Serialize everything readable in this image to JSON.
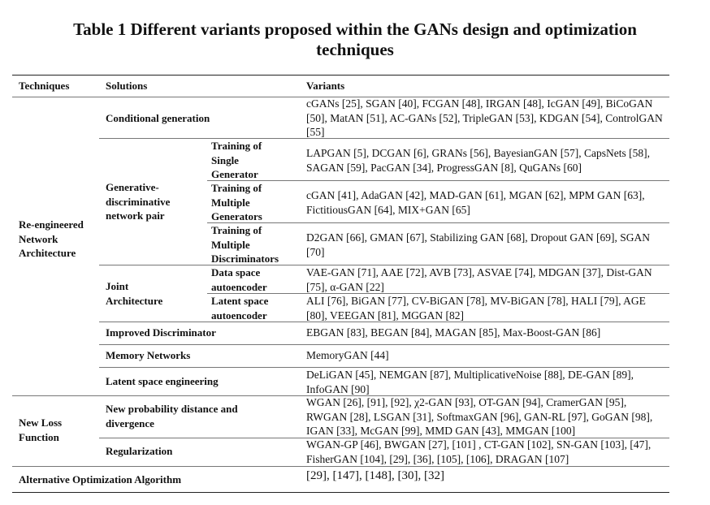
{
  "title": "Table 1 Different variants proposed within the GANs design and optimization techniques",
  "headers": {
    "techniques": "Techniques",
    "solutions": "Solutions",
    "variants": "Variants"
  },
  "techniques": {
    "reengineered": "Re-engineered Network Architecture",
    "new_loss": "New Loss Function",
    "alt_opt": "Alternative Optimization Algorithm"
  },
  "solutions": {
    "conditional": "Conditional generation",
    "gen_disc": "Generative-discriminative network pair",
    "joint": "Joint Architecture",
    "improved_disc": "Improved Discriminator",
    "memory": "Memory Networks",
    "latent_eng": "Latent space engineering",
    "new_prob": "New probability distance and divergence",
    "regularization": "Regularization"
  },
  "subsolutions": {
    "single_gen": "Training of Single Generator",
    "multi_gen": "Training of Multiple Generators",
    "multi_disc": "Training of Multiple Discriminators",
    "data_ae": "Data space autoencoder",
    "latent_ae": "Latent space autoencoder"
  },
  "variants": {
    "conditional": "cGANs [25], SGAN [40], FCGAN [48], IRGAN [48], IcGAN [49], BiCoGAN [50], MatAN [51], AC-GANs [52], TripleGAN [53], KDGAN [54], ControlGAN [55]",
    "single_gen": "LAPGAN [5], DCGAN [6], GRANs [56], BayesianGAN [57], CapsNets [58], SAGAN [59], PacGAN [34], ProgressGAN [8], QuGANs [60]",
    "multi_gen": "cGAN [41], AdaGAN [42], MAD-GAN [61], MGAN [62], MPM GAN [63], FictitiousGAN [64], MIX+GAN [65]",
    "multi_disc": "D2GAN [66], GMAN [67], Stabilizing GAN [68], Dropout GAN [69], SGAN [70]",
    "data_ae": "VAE-GAN [71], AAE [72], AVB [73], ASVAE [74], MDGAN [37], Dist-GAN [75], α-GAN [22]",
    "latent_ae": "ALI [76], BiGAN [77], CV-BiGAN [78], MV-BiGAN [78], HALI [79], AGE [80], VEEGAN [81], MGGAN [82]",
    "improved_disc": "EBGAN [83], BEGAN [84], MAGAN [85], Max-Boost-GAN [86]",
    "memory": "MemoryGAN [44]",
    "latent_eng": "DeLiGAN [45], NEMGAN [87], MultiplicativeNoise [88], DE-GAN [89], InfoGAN [90]",
    "new_prob": "WGAN [26], [91], [92], χ2-GAN [93], OT-GAN [94], CramerGAN [95], RWGAN [28], LSGAN [31], SoftmaxGAN [96], GAN-RL [97], GoGAN [98], IGAN [33], McGAN [99], MMD GAN [43], MMGAN [100]",
    "regularization": "WGAN-GP [46], BWGAN [27], [101] , CT-GAN [102], SN-GAN [103], [47], FisherGAN [104], [29], [36], [105], [106], DRAGAN [107]",
    "alt_opt": "[29], [147], [148], [30], [32]"
  }
}
